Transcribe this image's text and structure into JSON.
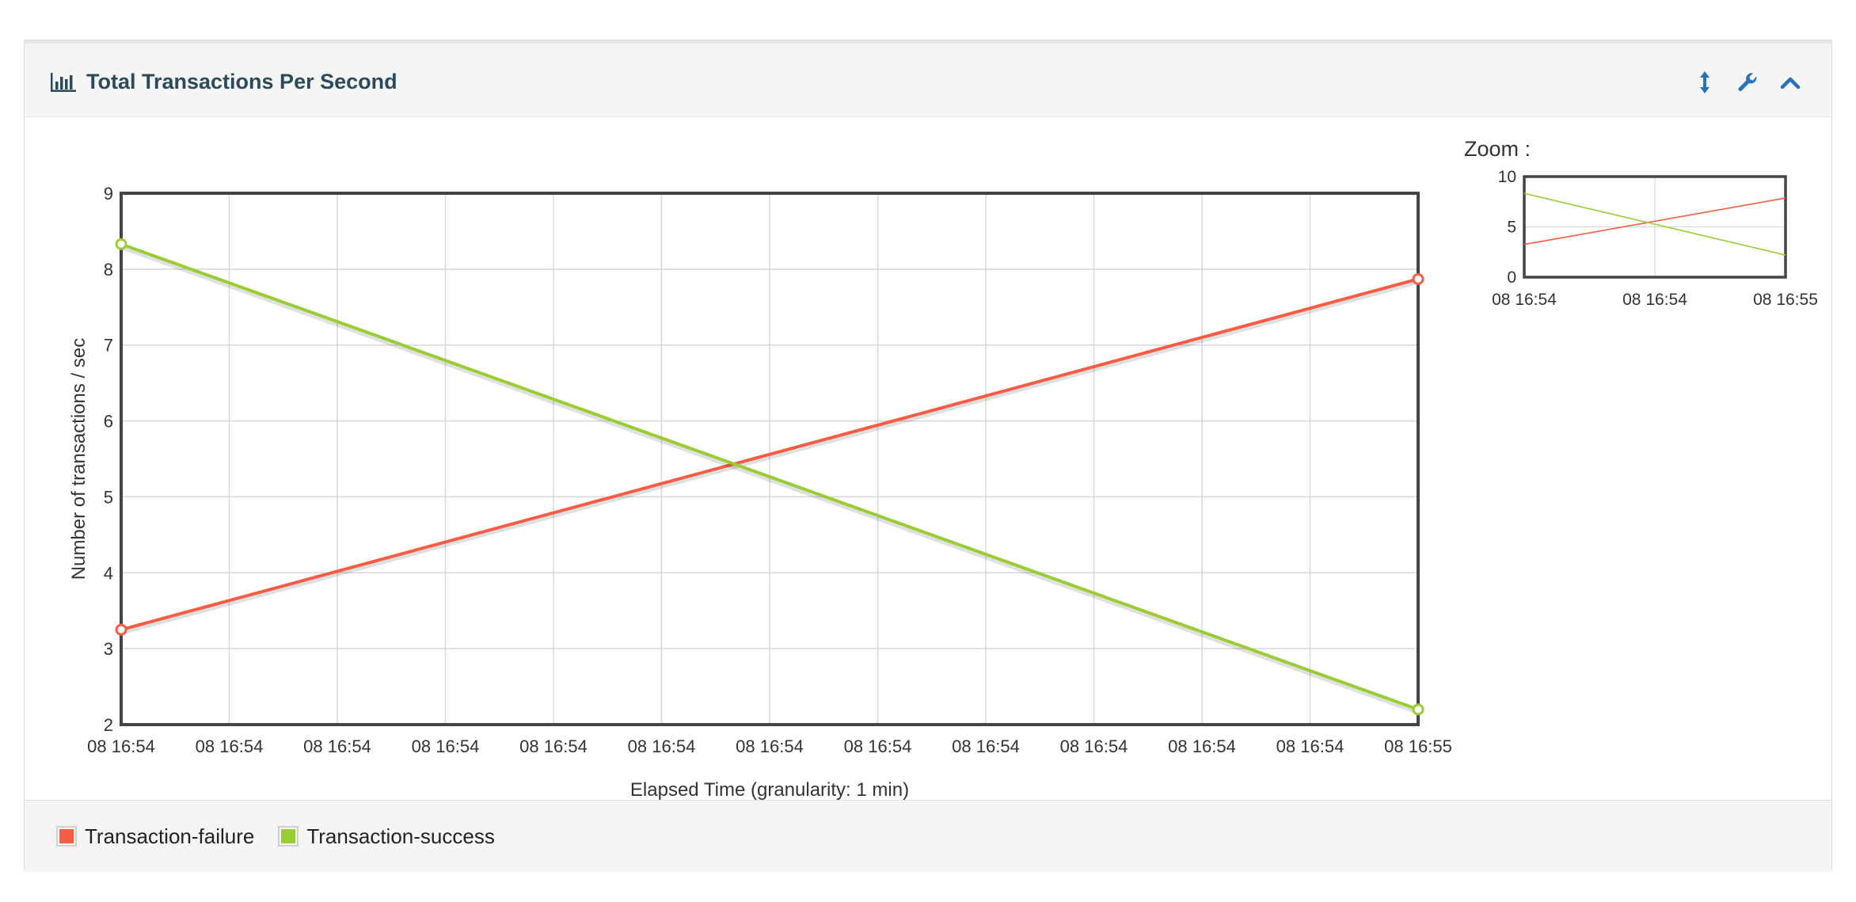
{
  "panel": {
    "title": "Total Transactions Per Second",
    "title_icon": "bar-chart-icon",
    "tools": [
      {
        "name": "resize-icon"
      },
      {
        "name": "wrench-icon"
      },
      {
        "name": "chevron-up-icon"
      }
    ]
  },
  "colors": {
    "accent": "#2a73b8",
    "failure": "#f75d44",
    "success": "#9acd32",
    "frame": "#444444",
    "grid": "#d8d8d8"
  },
  "zoom": {
    "label": "Zoom :",
    "ylim": [
      0,
      10
    ],
    "y_ticks": [
      "10",
      "5",
      "0"
    ],
    "x_ticks": [
      "08 16:54",
      "08 16:54",
      "08 16:55"
    ]
  },
  "chart_data": {
    "type": "line",
    "title": "Total Transactions Per Second",
    "xlabel": "Elapsed Time (granularity: 1 min)",
    "ylabel": "Number of transactions / sec",
    "ylim": [
      2,
      9
    ],
    "y_ticks": [
      "9",
      "8",
      "7",
      "6",
      "5",
      "4",
      "3",
      "2"
    ],
    "x_ticks": [
      "08 16:54",
      "08 16:54",
      "08 16:54",
      "08 16:54",
      "08 16:54",
      "08 16:54",
      "08 16:54",
      "08 16:54",
      "08 16:54",
      "08 16:54",
      "08 16:54",
      "08 16:54",
      "08 16:55"
    ],
    "x": [
      "08 16:54",
      "08 16:55"
    ],
    "grid": true,
    "series": [
      {
        "name": "Transaction-failure",
        "color": "#f75d44",
        "values": [
          3.25,
          7.87
        ]
      },
      {
        "name": "Transaction-success",
        "color": "#9acd32",
        "values": [
          8.33,
          2.2
        ]
      }
    ],
    "legend": {
      "position": "bottom",
      "items": [
        "Transaction-failure",
        "Transaction-success"
      ]
    }
  }
}
